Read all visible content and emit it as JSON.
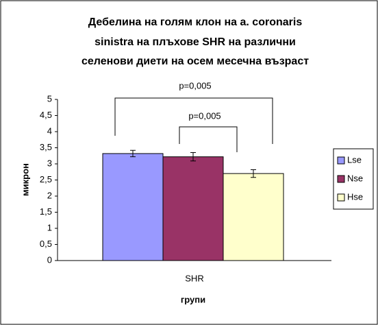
{
  "chart_data": {
    "type": "bar",
    "title": [
      "Дебелина на голям клон на a. coronaris",
      "sinistra на плъхове SHR на различни",
      "селенови диети на осем месечна възраст"
    ],
    "x_label": "групи",
    "y_label": "микрон",
    "categories": [
      "SHR"
    ],
    "series": [
      {
        "name": "Lse",
        "color": "#9999ff",
        "values": [
          3.32
        ],
        "errors": [
          0.1
        ]
      },
      {
        "name": "Nse",
        "color": "#993366",
        "values": [
          3.22
        ],
        "errors": [
          0.13
        ]
      },
      {
        "name": "Hse",
        "color": "#ffffcc",
        "values": [
          2.7
        ],
        "errors": [
          0.12
        ]
      }
    ],
    "ylim": [
      0,
      5
    ],
    "yticks": [
      0,
      {
        "value": 0.5,
        "label": "0,5"
      },
      1,
      {
        "value": 1.5,
        "label": "1,5"
      },
      2,
      {
        "value": 2.5,
        "label": "2,5"
      },
      3,
      {
        "value": 3.5,
        "label": "3,5"
      },
      4,
      {
        "value": 4.5,
        "label": "4,5"
      },
      5
    ],
    "annotations": [
      "p=0,005",
      "p=0,005"
    ],
    "legend": "right",
    "grid": false
  }
}
